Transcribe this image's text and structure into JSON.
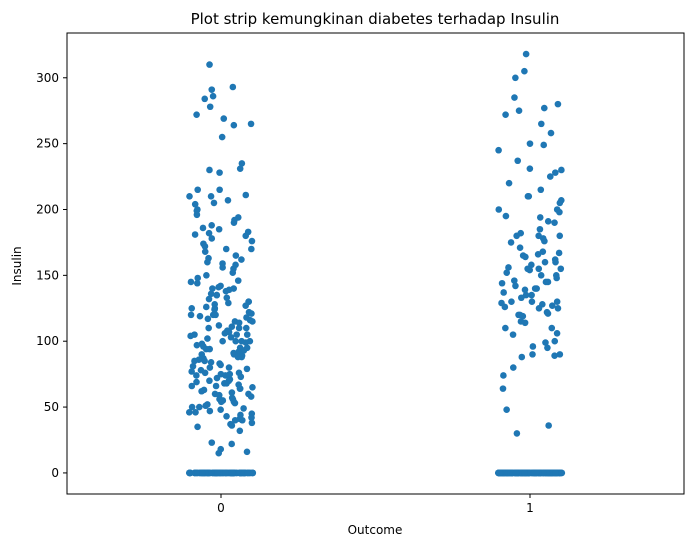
{
  "chart_data": {
    "type": "scatter",
    "title": "Plot strip kemungkinan diabetes terhadap Insulin",
    "xlabel": "Outcome",
    "ylabel": "Insulin",
    "categories": [
      "0",
      "1"
    ],
    "ylim": [
      -16,
      334
    ],
    "yticks": [
      0,
      50,
      100,
      150,
      200,
      250,
      300
    ],
    "grid": false,
    "point_color": "#1f77b4",
    "series": [
      {
        "category": "0",
        "zero_count": 138,
        "values": [
          310,
          293,
          291,
          286,
          284,
          278,
          272,
          269,
          265,
          264,
          255,
          235,
          231,
          230,
          228,
          215,
          215,
          211,
          210,
          210,
          207,
          205,
          204,
          200,
          199,
          196,
          194,
          192,
          190,
          188,
          186,
          185,
          183,
          182,
          181,
          180,
          178,
          176,
          174,
          172,
          170,
          170,
          168,
          165,
          163,
          162,
          160,
          159,
          158,
          156,
          155,
          152,
          150,
          148,
          146,
          145,
          144,
          142,
          141,
          140,
          140,
          139,
          138,
          136,
          135,
          135,
          133,
          132,
          130,
          130,
          129,
          128,
          127,
          126,
          125,
          125,
          124,
          122,
          121,
          120,
          120,
          120,
          119,
          118,
          117,
          116,
          115,
          115,
          114,
          112,
          111,
          110,
          110,
          110,
          108,
          107,
          106,
          105,
          105,
          105,
          104,
          103,
          102,
          100,
          100,
          100,
          100,
          99,
          98,
          97,
          96,
          95,
          95,
          94,
          94,
          93,
          92,
          91,
          90,
          90,
          89,
          88,
          88,
          87,
          86,
          85,
          85,
          84,
          83,
          82,
          81,
          80,
          80,
          79,
          78,
          77,
          76,
          76,
          75,
          75,
          74,
          74,
          73,
          72,
          71,
          70,
          70,
          69,
          68,
          68,
          67,
          66,
          66,
          65,
          64,
          64,
          63,
          62,
          61,
          60,
          60,
          59,
          58,
          57,
          56,
          56,
          55,
          54,
          54,
          53,
          52,
          51,
          50,
          50,
          49,
          48,
          47,
          46,
          46,
          45,
          44,
          43,
          42,
          41,
          40,
          40,
          38,
          37,
          36,
          35,
          32,
          23,
          22,
          18,
          16,
          15
        ]
      },
      {
        "category": "1",
        "zero_count": 236,
        "values": [
          318,
          305,
          300,
          285,
          280,
          277,
          275,
          272,
          265,
          258,
          250,
          249,
          245,
          237,
          231,
          230,
          228,
          225,
          220,
          215,
          210,
          210,
          207,
          205,
          200,
          200,
          198,
          195,
          194,
          191,
          190,
          185,
          182,
          180,
          180,
          180,
          178,
          176,
          175,
          171,
          168,
          167,
          166,
          165,
          164,
          162,
          160,
          160,
          158,
          156,
          155,
          155,
          155,
          154,
          152,
          150,
          150,
          148,
          146,
          145,
          145,
          144,
          142,
          140,
          140,
          139,
          137,
          135,
          135,
          133,
          130,
          130,
          130,
          129,
          128,
          127,
          126,
          125,
          125,
          122,
          121,
          120,
          120,
          119,
          115,
          114,
          110,
          110,
          106,
          105,
          100,
          99,
          96,
          95,
          90,
          90,
          89,
          88,
          80,
          74,
          64,
          48,
          36,
          30
        ]
      }
    ]
  }
}
